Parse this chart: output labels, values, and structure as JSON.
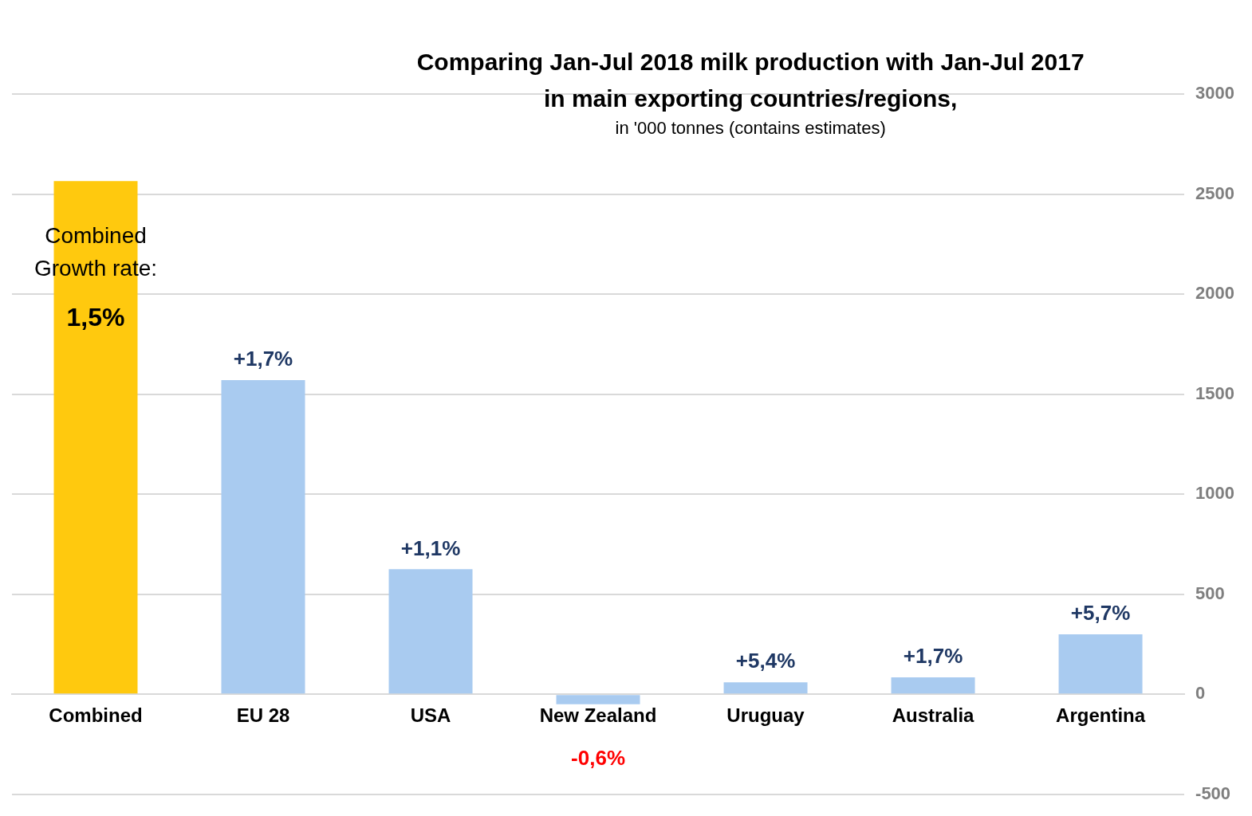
{
  "chart_data": {
    "type": "bar",
    "title": "Comparing Jan-Jul 2018 milk production with Jan-Jul 2017 in main exporting countries/regions,",
    "subtitle": "in '000 tonnes (contains estimates)",
    "categories": [
      "Combined",
      "EU 28",
      "USA",
      "New Zealand",
      "Uruguay",
      "Australia",
      "Argentina"
    ],
    "values": [
      2565,
      1570,
      625,
      -50,
      60,
      85,
      300
    ],
    "colors": [
      "#ffc90e",
      "#a9cbf0",
      "#a9cbf0",
      "#a9cbf0",
      "#a9cbf0",
      "#a9cbf0",
      "#a9cbf0"
    ],
    "annotations": [
      "Combined Growth rate:",
      "1,5%",
      {
        "text": "+1,7%",
        "x": "EU 28",
        "y": 1570
      },
      {
        "text": "+1,1%",
        "x": "USA",
        "y": 625
      },
      {
        "text": "-0,6%",
        "x": "New Zealand",
        "y": -50
      },
      {
        "text": "+5,4%",
        "x": "Uruguay",
        "y": 60
      },
      {
        "text": "+1,7%",
        "x": "Australia",
        "y": 85
      },
      {
        "text": "+5,7%",
        "x": "Argentina",
        "y": 300
      }
    ],
    "ylim": [
      -500,
      3000
    ],
    "yticks": [
      -500,
      0,
      500,
      1000,
      1500,
      2000,
      2500,
      3000
    ],
    "grid": "y",
    "legend": false
  }
}
